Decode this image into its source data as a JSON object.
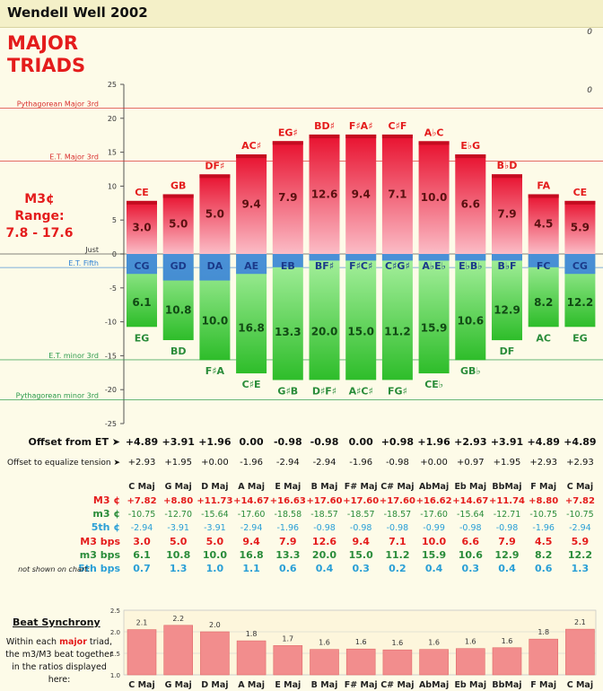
{
  "header": {
    "title": "Wendell Well 2002",
    "corner_value_top": "0",
    "corner_value_second": "0"
  },
  "chart_title_lines": [
    "MAJOR",
    "TRIADS"
  ],
  "range_note": {
    "line1": "M3¢ Range:",
    "line2": "7.8 - 17.6"
  },
  "chart_data": {
    "type": "bar",
    "ylim": [
      -25,
      25
    ],
    "yticks": [
      25,
      20,
      15,
      10,
      5,
      0,
      -5,
      -10,
      -15,
      -20,
      -25
    ],
    "grid": true,
    "reference_lines": [
      {
        "label": "Pythagorean Major 3rd",
        "value": 21.5,
        "color": "#d93030"
      },
      {
        "label": "E.T. Major 3rd",
        "value": 13.7,
        "color": "#d93030"
      },
      {
        "label": "Just",
        "value": 0,
        "color": "#333333"
      },
      {
        "label": "E.T. Fifth",
        "value": -2,
        "color": "#2a7fd4"
      },
      {
        "label": "E.T. minor 3rd",
        "value": -15.6,
        "color": "#2a9a4a"
      },
      {
        "label": "Pythagorean minor 3rd",
        "value": -21.5,
        "color": "#2a9a4a"
      }
    ],
    "keys": [
      "C Maj",
      "G Maj",
      "D Maj",
      "A Maj",
      "E Maj",
      "B Maj",
      "F# Maj",
      "C# Maj",
      "AbMaj",
      "Eb Maj",
      "BbMaj",
      "F Maj",
      "C Maj"
    ],
    "M3_label": [
      "CE",
      "GB",
      "DF♯",
      "AC♯",
      "EG♯",
      "BD♯",
      "F♯A♯",
      "C♯F",
      "A♭C",
      "E♭G",
      "B♭D",
      "FA",
      "CE"
    ],
    "fifth_label": [
      "CG",
      "GD",
      "DA",
      "AE",
      "EB",
      "BF♯",
      "F♯C♯",
      "C♯G♯",
      "A♭E♭",
      "E♭B♭",
      "B♭F",
      "FC",
      "CG"
    ],
    "m3_label": [
      "EG",
      "BD",
      "F♯A",
      "C♯E",
      "G♯B",
      "D♯F♯",
      "A♯C♯",
      "FG♯",
      "CE♭",
      "GB♭",
      "DF",
      "AC",
      "EG"
    ],
    "offset_from_et": [
      "+4.89",
      "+3.91",
      "+1.96",
      "0.00",
      "-0.98",
      "-0.98",
      "0.00",
      "+0.98",
      "+1.96",
      "+2.93",
      "+3.91",
      "+4.89",
      "+4.89"
    ],
    "offset_equalize": [
      "+2.93",
      "+1.95",
      "+0.00",
      "-1.96",
      "-2.94",
      "-2.94",
      "-1.96",
      "-0.98",
      "+0.00",
      "+0.97",
      "+1.95",
      "+2.93",
      "+2.93"
    ],
    "M3_cents": [
      "+7.82",
      "+8.80",
      "+11.73",
      "+14.67",
      "+16.63",
      "+17.60",
      "+17.60",
      "+17.60",
      "+16.62",
      "+14.67",
      "+11.74",
      "+8.80",
      "+7.82"
    ],
    "m3_cents": [
      "-10.75",
      "-12.70",
      "-15.64",
      "-17.60",
      "-18.58",
      "-18.57",
      "-18.57",
      "-18.57",
      "-17.60",
      "-15.64",
      "-12.71",
      "-10.75",
      "-10.75"
    ],
    "fifth_cents": [
      "-2.94",
      "-3.91",
      "-3.91",
      "-2.94",
      "-1.96",
      "-0.98",
      "-0.98",
      "-0.98",
      "-0.99",
      "-0.98",
      "-0.98",
      "-1.96",
      "-2.94"
    ],
    "M3_bps": [
      "3.0",
      "5.0",
      "5.0",
      "9.4",
      "7.9",
      "12.6",
      "9.4",
      "7.1",
      "10.0",
      "6.6",
      "7.9",
      "4.5",
      "5.9"
    ],
    "m3_bps": [
      "6.1",
      "10.8",
      "10.0",
      "16.8",
      "13.3",
      "20.0",
      "15.0",
      "11.2",
      "15.9",
      "10.6",
      "12.9",
      "8.2",
      "12.2"
    ],
    "fifth_bps": [
      "0.7",
      "1.3",
      "1.0",
      "1.1",
      "0.6",
      "0.4",
      "0.3",
      "0.2",
      "0.4",
      "0.3",
      "0.4",
      "0.6",
      "1.3"
    ],
    "M3_val": [
      7.82,
      8.8,
      11.73,
      14.67,
      16.63,
      17.6,
      17.6,
      17.6,
      16.62,
      14.67,
      11.74,
      8.8,
      7.82
    ],
    "m3_val": [
      -10.75,
      -12.7,
      -15.64,
      -17.6,
      -18.58,
      -18.57,
      -18.57,
      -18.57,
      -17.6,
      -15.64,
      -12.71,
      -10.75,
      -10.75
    ],
    "fifth_val": [
      -2.94,
      -3.91,
      -3.91,
      -2.94,
      -1.96,
      -0.98,
      -0.98,
      -0.98,
      -0.99,
      -0.98,
      -0.98,
      -1.96,
      -2.94
    ]
  },
  "row_labels": {
    "offset_from_et": "Offset from ET ➤",
    "offset_equalize": "Offset to equalize tension ➤",
    "M3_cents": "M3 ¢",
    "m3_cents": "m3 ¢",
    "fifth_cents": "5th ¢",
    "M3_bps": "M3 bps",
    "m3_bps": "m3 bps",
    "fifth_bps": "5th bps",
    "not_shown": "not shown on chart:"
  },
  "beat_sync": {
    "heading": "Beat Synchrony",
    "desc": [
      "Within each ",
      "major",
      " triad,",
      "the m3/M3 beat together",
      "in the ratios displayed",
      "here:"
    ],
    "ylim": [
      1.0,
      2.5
    ],
    "yticks": [
      "2.5",
      "2.0",
      "1.5",
      "1.0"
    ],
    "values": [
      2.05,
      2.15,
      2.0,
      1.79,
      1.68,
      1.59,
      1.6,
      1.58,
      1.59,
      1.61,
      1.63,
      1.83,
      2.06
    ],
    "labels": [
      "2.1",
      "2.2",
      "2.0",
      "1.8",
      "1.7",
      "1.6",
      "1.6",
      "1.6",
      "1.6",
      "1.6",
      "1.6",
      "1.8",
      "2.1"
    ]
  },
  "colors": {
    "M3_top": "#e8102e",
    "M3_bottom": "#fbbcc6",
    "m3_top": "#a9f1a0",
    "m3_bottom": "#2ebd2a",
    "fifth": "#3a7fe0",
    "M3_text": "#e41c1c",
    "m3_text": "#2a8c3a",
    "fifth_text": "#2a9fd6",
    "sync_bar": "#f28d8d"
  }
}
